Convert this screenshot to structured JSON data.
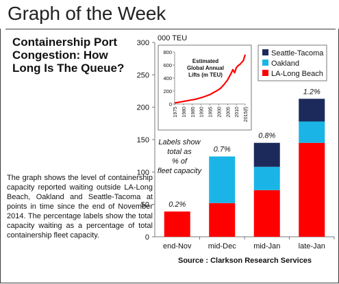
{
  "header": {
    "title": "Graph of the Week"
  },
  "chart_title": "Containership Port Congestion: How Long Is The Queue?",
  "description": "The graph shows the level of containership capacity reported waiting outside LA-Long Beach, Oakland and Seattle-Tacoma at points in time since the end of November 2014. The percentage labels show the total capacity waiting as a percentage of total containership fleet capacity.",
  "source": "Source : Clarkson Research Services",
  "chart_data": [
    {
      "type": "bar",
      "stacked": true,
      "categories": [
        "end-Nov",
        "mid-Dec",
        "mid-Jan",
        "late-Jan"
      ],
      "unit_label": "000 TEU",
      "ylim": [
        0,
        300
      ],
      "yticks": [
        0,
        50,
        100,
        150,
        200,
        250,
        300
      ],
      "series": [
        {
          "name": "LA-Long Beach",
          "color": "#ff0000",
          "values": [
            39,
            52,
            72,
            145
          ]
        },
        {
          "name": "Oakland",
          "color": "#1ab5e6",
          "values": [
            0,
            72,
            36,
            33
          ]
        },
        {
          "name": "Seattle-Tacoma",
          "color": "#1c2a5b",
          "values": [
            0,
            0,
            37,
            35
          ]
        }
      ],
      "data_labels": [
        "0.2%",
        "0.7%",
        "0.8%",
        "1.2%"
      ],
      "annotation": "Labels show total as % of fleet capacity",
      "legend": {
        "position": "top-right",
        "order": [
          "Seattle-Tacoma",
          "Oakland",
          "LA-Long Beach"
        ]
      },
      "grid": false
    },
    {
      "type": "line",
      "title": "Estimated Global Annual Lifts (m TEU)",
      "color": "#ff0000",
      "xlim": [
        1975,
        2015
      ],
      "ylim": [
        0,
        800
      ],
      "yticks": [
        0,
        200,
        400,
        600,
        800
      ],
      "xticks": [
        "1975",
        "1980",
        "1985",
        "1990",
        "1995",
        "2000",
        "2005",
        "2010",
        "2015(f)"
      ],
      "x": [
        1975,
        1977,
        1979,
        1981,
        1983,
        1985,
        1987,
        1989,
        1991,
        1993,
        1995,
        1997,
        1999,
        2001,
        2003,
        2005,
        2007,
        2008,
        2009,
        2010,
        2011,
        2012,
        2013,
        2014,
        2015
      ],
      "y": [
        18,
        25,
        35,
        45,
        55,
        65,
        75,
        90,
        105,
        125,
        145,
        175,
        205,
        240,
        300,
        370,
        470,
        530,
        480,
        560,
        590,
        610,
        640,
        670,
        760
      ]
    }
  ]
}
